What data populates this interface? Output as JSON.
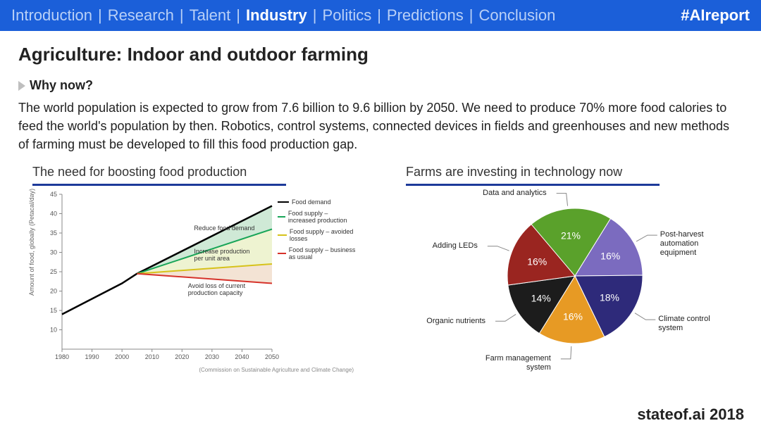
{
  "topbar": {
    "items": [
      "Introduction",
      "Research",
      "Talent",
      "Industry",
      "Politics",
      "Predictions",
      "Conclusion"
    ],
    "active_index": 3,
    "separator": "|",
    "hashtag": "#AIreport",
    "bg": "#1b5fd9",
    "inactive_color": "#b9d0f7",
    "active_color": "#ffffff"
  },
  "page": {
    "title": "Agriculture: Indoor and outdoor farming",
    "subhead": "Why now?",
    "body": "The world population is expected to grow from 7.6 billion to 9.6 billion by 2050. We need to produce 70% more food calories to feed the world's population by then. Robotics, control systems, connected devices in fields and greenhouses and new methods of farming must be developed to fill this food production gap.",
    "footer": "stateof.ai 2018"
  },
  "line_chart": {
    "title": "The need for boosting food production",
    "type": "line-area",
    "x": {
      "min": 1980,
      "max": 2050,
      "ticks": [
        1980,
        1990,
        2000,
        2010,
        2020,
        2030,
        2040,
        2050
      ]
    },
    "y": {
      "label": "Amount of food, globally (Petacal/day)",
      "min": 5,
      "max": 45,
      "ticks": [
        10,
        15,
        20,
        25,
        30,
        35,
        40,
        45
      ]
    },
    "axis_color": "#888888",
    "grid_color": "#d0d0d0",
    "bg": "#ffffff",
    "legend": [
      {
        "label": "Food demand",
        "color": "#000000"
      },
      {
        "label": "Food supply – increased production",
        "color": "#18a558"
      },
      {
        "label": "Food supply – avoided losses",
        "color": "#d6c21a"
      },
      {
        "label": "Food supply – business as usual",
        "color": "#d6322a"
      }
    ],
    "series": {
      "demand": {
        "color": "#000000",
        "width": 2.5,
        "pts": [
          [
            1980,
            14
          ],
          [
            1990,
            18
          ],
          [
            2000,
            22
          ],
          [
            2005,
            24.5
          ],
          [
            2050,
            42
          ]
        ]
      },
      "increased": {
        "color": "#18a558",
        "width": 2,
        "pts": [
          [
            2005,
            24.5
          ],
          [
            2050,
            36
          ]
        ]
      },
      "avoided": {
        "color": "#d6c21a",
        "width": 2,
        "pts": [
          [
            2005,
            24.5
          ],
          [
            2050,
            27
          ]
        ]
      },
      "bau": {
        "color": "#d6322a",
        "width": 2,
        "pts": [
          [
            2005,
            24.5
          ],
          [
            2050,
            22
          ]
        ]
      }
    },
    "fills": {
      "top": {
        "color": "#cfe9d6",
        "between": [
          "demand",
          "increased"
        ]
      },
      "middle": {
        "color": "#eef3d1",
        "between": [
          "increased",
          "avoided"
        ]
      },
      "bottom": {
        "color": "#f3e3d4",
        "between": [
          "avoided",
          "bau"
        ]
      }
    },
    "annotations": [
      {
        "text": "Reduce food demand",
        "x": 2024,
        "y": 36
      },
      {
        "text": "Increase production\nper unit area",
        "x": 2024,
        "y": 30
      },
      {
        "text": "Avoid loss of current\nproduction capacity",
        "x": 2022,
        "y": 21
      }
    ],
    "source": "(Commission on Sustainable Agriculture and Climate Change)"
  },
  "pie_chart": {
    "title": "Farms are investing in technology now",
    "type": "pie",
    "bg": "#ffffff",
    "label_fontsize": 11,
    "pct_fontsize": 14,
    "slices": [
      {
        "label": "Data and analytics",
        "pct": 21,
        "color": "#5aa12b"
      },
      {
        "label": "Post-harvest automation equipment",
        "pct": 16,
        "color": "#7b6bbf"
      },
      {
        "label": "Climate control system",
        "pct": 18,
        "color": "#2e2a7a"
      },
      {
        "label": "Farm management system",
        "pct": 16,
        "color": "#e79a24"
      },
      {
        "label": "Organic nutrients",
        "pct": 14,
        "color": "#1c1c1c"
      },
      {
        "label": "Adding LEDs",
        "pct": 16,
        "color": "#9a2520"
      }
    ]
  }
}
